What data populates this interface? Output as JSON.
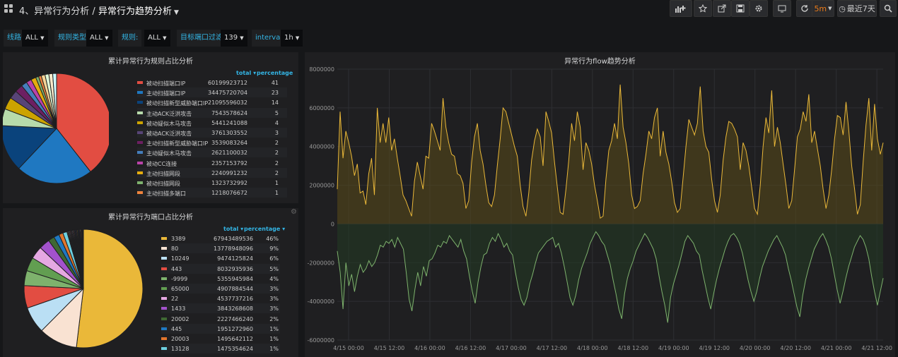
{
  "header": {
    "breadcrumb_folder": "4、异常行为分析",
    "breadcrumb_sep": "/",
    "dashboard_title": "异常行为趋势分析",
    "refresh_interval": "5m",
    "time_range": "最近7天"
  },
  "variables": [
    {
      "label": "线路",
      "value": "ALL"
    },
    {
      "label": "规则类型",
      "value": "ALL"
    },
    {
      "label": "规则:",
      "value": "ALL"
    },
    {
      "label": "目标端口过滤",
      "value": "139"
    },
    {
      "label": "interval",
      "value": "1h"
    }
  ],
  "panel1": {
    "title": "累计异常行为规则占比分析",
    "col_total": "total",
    "col_percentage": "percentage",
    "rows": [
      {
        "name": "被动扫描端口IP",
        "total": "60199923712",
        "pct": "41",
        "color": "#e24d42"
      },
      {
        "name": "主动扫描端口IP",
        "total": "34475720704",
        "pct": "23",
        "color": "#1f78c1"
      },
      {
        "name": "被动扫描新型威胁端口IP",
        "total": "21095596032",
        "pct": "14",
        "color": "#0a437c"
      },
      {
        "name": "主动ACK泛洪攻击",
        "total": "7543578624",
        "pct": "5",
        "color": "#b7dbab"
      },
      {
        "name": "被动疑似木马攻击",
        "total": "5441241088",
        "pct": "4",
        "color": "#cca300"
      },
      {
        "name": "被动ACK泛洪攻击",
        "total": "3761303552",
        "pct": "3",
        "color": "#584477"
      },
      {
        "name": "主动扫描新型威胁端口IP",
        "total": "3539083264",
        "pct": "2",
        "color": "#6d1f62"
      },
      {
        "name": "主动疑似木马攻击",
        "total": "2621100032",
        "pct": "2",
        "color": "#447ebc"
      },
      {
        "name": "被动CC连接",
        "total": "2357153792",
        "pct": "2",
        "color": "#ba43a9"
      },
      {
        "name": "主动扫描网段",
        "total": "2240991232",
        "pct": "2",
        "color": "#e5ac0e"
      },
      {
        "name": "被动扫描网段",
        "total": "1323732992",
        "pct": "1",
        "color": "#7eb26d"
      },
      {
        "name": "主动扫描多端口",
        "total": "1218076672",
        "pct": "1",
        "color": "#ef843c"
      }
    ]
  },
  "panel2": {
    "title": "累计异常行为端口占比分析",
    "col_total": "total",
    "col_percentage": "percentage",
    "rows": [
      {
        "name": "3389",
        "total": "67943489536",
        "pct": "46%",
        "color": "#eab839"
      },
      {
        "name": "80",
        "total": "13778948096",
        "pct": "9%",
        "color": "#f9e2d2"
      },
      {
        "name": "10249",
        "total": "9474125824",
        "pct": "6%",
        "color": "#badff4"
      },
      {
        "name": "443",
        "total": "8032935936",
        "pct": "5%",
        "color": "#e24d42"
      },
      {
        "name": "-9999",
        "total": "5355945984",
        "pct": "4%",
        "color": "#7eb26d"
      },
      {
        "name": "65000",
        "total": "4907884544",
        "pct": "3%",
        "color": "#629e51"
      },
      {
        "name": "22",
        "total": "4537737216",
        "pct": "3%",
        "color": "#e5a8e2"
      },
      {
        "name": "1433",
        "total": "3843268608",
        "pct": "3%",
        "color": "#a352cc"
      },
      {
        "name": "20002",
        "total": "2227466240",
        "pct": "2%",
        "color": "#3f6833"
      },
      {
        "name": "445",
        "total": "1951272960",
        "pct": "1%",
        "color": "#1f78c1"
      },
      {
        "name": "20003",
        "total": "1495642112",
        "pct": "1%",
        "color": "#e0752d"
      },
      {
        "name": "13128",
        "total": "1475354624",
        "pct": "1%",
        "color": "#6ed0e0"
      }
    ]
  },
  "chart_data": {
    "type": "line",
    "title": "异常行为flow趋势分析",
    "y_ticks": [
      "8000000",
      "6000000",
      "4000000",
      "2000000",
      "0",
      "-2000000",
      "-4000000",
      "-6000000"
    ],
    "ylim": [
      -6000000,
      8000000
    ],
    "x_ticks": [
      "4/15 00:00",
      "4/15 12:00",
      "4/16 00:00",
      "4/16 12:00",
      "4/17 00:00",
      "4/17 12:00",
      "4/18 00:00",
      "4/18 12:00",
      "4/19 00:00",
      "4/19 12:00",
      "4/20 00:00",
      "4/20 12:00",
      "4/21 00:00",
      "4/21 12:00"
    ],
    "series": [
      {
        "color": "#eab839",
        "fill": "#5a4a1a",
        "values": [
          1800000,
          5800000,
          3400000,
          4800000,
          4200000,
          3500000,
          2500000,
          3100000,
          1600000,
          1700000,
          1000000,
          2600000,
          3400000,
          1500000,
          6000000,
          4200000,
          5200000,
          4200000,
          5500000,
          3800000,
          4400000,
          3400000,
          2500000,
          1500000,
          1200000,
          800000,
          400000,
          2200000,
          3200000,
          2500000,
          1800000,
          3500000,
          3400000,
          5200000,
          4800000,
          4300000,
          3800000,
          6500000,
          5000000,
          4200000,
          3600000,
          3500000,
          2600000,
          2500000,
          2100000,
          800000,
          1200000,
          3200000,
          4500000,
          5200000,
          3800000,
          3100000,
          2000000,
          1100000,
          900000,
          1500000,
          3000000,
          4400000,
          6000000,
          5800000,
          5200000,
          4600000,
          4000000,
          3500000,
          2000000,
          900000,
          400000,
          1600000,
          3300000,
          4300000,
          4900000,
          4500000,
          3000000,
          5800000,
          5300000,
          4700000,
          3200000,
          1900000,
          600000,
          500000,
          1800000,
          3300000,
          5200000,
          4300000,
          5800000,
          5000000,
          2800000,
          4200000,
          3800000,
          3100000,
          2000000,
          1200000,
          300000,
          400000,
          2300000,
          3800000,
          4300000,
          5200000,
          4400000,
          7200000,
          5000000,
          4200000,
          3100000,
          1500000,
          800000,
          900000,
          1200000,
          2600000,
          3600000,
          4800000,
          4400000,
          5500000,
          6000000,
          3500000,
          4800000,
          3700000,
          3100000,
          2200000,
          1100000,
          600000,
          800000,
          2400000,
          4000000,
          5400000,
          5000000,
          4600000,
          5200000,
          7100000,
          4800000,
          4000000,
          3700000,
          2300000,
          1200000,
          600000,
          1500000,
          3300000,
          4500000,
          5300000,
          5200000,
          4900000,
          4500000,
          2800000,
          4200000,
          3800000,
          3000000,
          1900000,
          800000,
          500000,
          2000000,
          4000000,
          5500000,
          4700000,
          6900000,
          4000000,
          5000000,
          4200000,
          3100000,
          2000000,
          800000,
          1200000,
          2800000,
          4500000,
          4900000,
          5800000,
          5300000,
          6700000,
          4200000,
          4800000,
          3900000,
          3000000,
          1800000,
          800000,
          1500000,
          2800000,
          4400000,
          5600000,
          5500000,
          4600000,
          6300000,
          4800000,
          3000000,
          1800000,
          500000,
          1000000,
          3200000,
          5100000,
          6500000,
          3800000,
          6200000,
          4400000,
          3600000,
          4200000
        ]
      },
      {
        "color": "#7eb26d",
        "fill": "#223a24",
        "values": [
          -1400000,
          -2500000,
          -4400000,
          -2000000,
          -3200000,
          -2600000,
          -3500000,
          -2700000,
          -2100000,
          -2500000,
          -2300000,
          -1900000,
          -2200000,
          -2000000,
          -1600000,
          -1100000,
          -1200000,
          -900000,
          -1000000,
          -800000,
          -1200000,
          -700000,
          -1000000,
          -1300000,
          -2500000,
          -3900000,
          -4500000,
          -3400000,
          -2500000,
          -3200000,
          -2200000,
          -2700000,
          -1900000,
          -1800000,
          -1500000,
          -1100000,
          -1200000,
          -900000,
          -1000000,
          -600000,
          -800000,
          -1000000,
          -1200000,
          -800000,
          -1400000,
          -1800000,
          -2700000,
          -3500000,
          -4100000,
          -3000000,
          -2200000,
          -1600000,
          -1500000,
          -1000000,
          -700000,
          -900000,
          -500000,
          -800000,
          -1200000,
          -1000000,
          -1400000,
          -1600000,
          -2500000,
          -3300000,
          -3900000,
          -4200000,
          -3800000,
          -3100000,
          -2600000,
          -2000000,
          -1500000,
          -1300000,
          -1100000,
          -900000,
          -800000,
          -700000,
          -1200000,
          -1000000,
          -1500000,
          -2200000,
          -3000000,
          -3800000,
          -4200000,
          -3700000,
          -2900000,
          -2300000,
          -1900000,
          -1500000,
          -1000000,
          -700000,
          -400000,
          -600000,
          -900000,
          -1100000,
          -1600000,
          -2100000,
          -2900000,
          -3600000,
          -4400000,
          -4900000,
          -3600000,
          -2800000,
          -2300000,
          -1900000,
          -1400000,
          -1100000,
          -800000,
          -500000,
          -700000,
          -1000000,
          -1300000,
          -1800000,
          -2700000,
          -3500000,
          -4200000,
          -5100000,
          -3800000,
          -3100000,
          -2600000,
          -2100000,
          -1500000,
          -900000,
          -600000,
          -800000,
          -1000000,
          -1400000,
          -1600000,
          -2400000,
          -3100000,
          -3800000,
          -4400000,
          -3600000,
          -2900000,
          -2300000,
          -1800000,
          -1300000,
          -900000,
          -600000,
          -500000,
          -700000,
          -1000000,
          -1500000,
          -2200000,
          -2900000,
          -3500000,
          -4000000,
          -3500000,
          -2800000,
          -2200000,
          -1800000,
          -1400000,
          -1100000,
          -800000,
          -600000,
          -900000,
          -1200000,
          -1600000,
          -2300000,
          -2900000,
          -3600000,
          -4300000,
          -4800000,
          -3700000,
          -2900000,
          -2300000,
          -1800000,
          -1300000,
          -1000000,
          -700000,
          -500000,
          -800000,
          -1200000,
          -1800000,
          -2600000,
          -3400000,
          -4100000,
          -3500000,
          -2800000,
          -2200000,
          -1700000,
          -1200000,
          -900000,
          -600000,
          -800000,
          -1200000,
          -1800000,
          -2700000,
          -3500000,
          -4200000,
          -3500000,
          -2800000
        ]
      }
    ]
  }
}
